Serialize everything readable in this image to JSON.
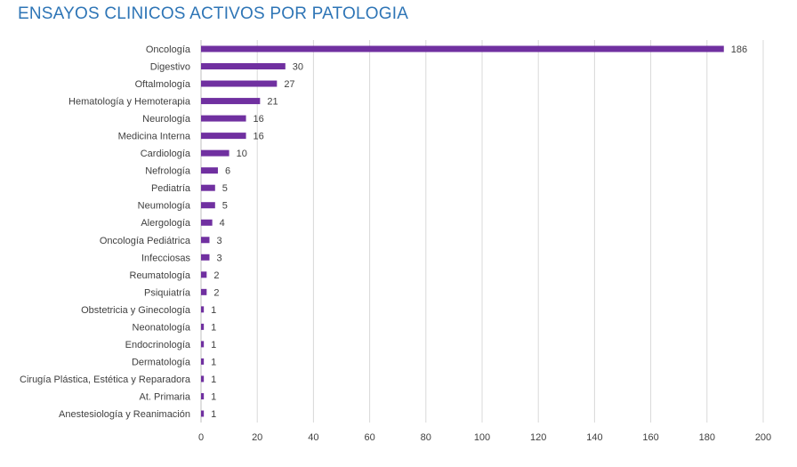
{
  "chart_data": {
    "type": "bar",
    "orientation": "horizontal",
    "title": "ENSAYOS CLINICOS ACTIVOS POR PATOLOGIA",
    "xlabel": "",
    "ylabel": "",
    "xlim": [
      0,
      200
    ],
    "xticks": [
      0,
      20,
      40,
      60,
      80,
      100,
      120,
      140,
      160,
      180,
      200
    ],
    "grid": true,
    "bar_color": "#7030a0",
    "title_color": "#2e75b6",
    "categories": [
      "Oncología",
      "Digestivo",
      "Oftalmología",
      "Hematología y Hemoterapia",
      "Neurología",
      "Medicina Interna",
      "Cardiología",
      "Nefrología",
      "Pediatría",
      "Neumología",
      "Alergología",
      "Oncología Pediátrica",
      "Infecciosas",
      "Reumatología",
      "Psiquiatría",
      "Obstetricia y Ginecología",
      "Neonatología",
      "Endocrinología",
      "Dermatología",
      "Cirugía Plástica, Estética y Reparadora",
      "At. Primaria",
      "Anestesiología y Reanimación"
    ],
    "values": [
      186,
      30,
      27,
      21,
      16,
      16,
      10,
      6,
      5,
      5,
      4,
      3,
      3,
      2,
      2,
      1,
      1,
      1,
      1,
      1,
      1,
      1
    ]
  }
}
